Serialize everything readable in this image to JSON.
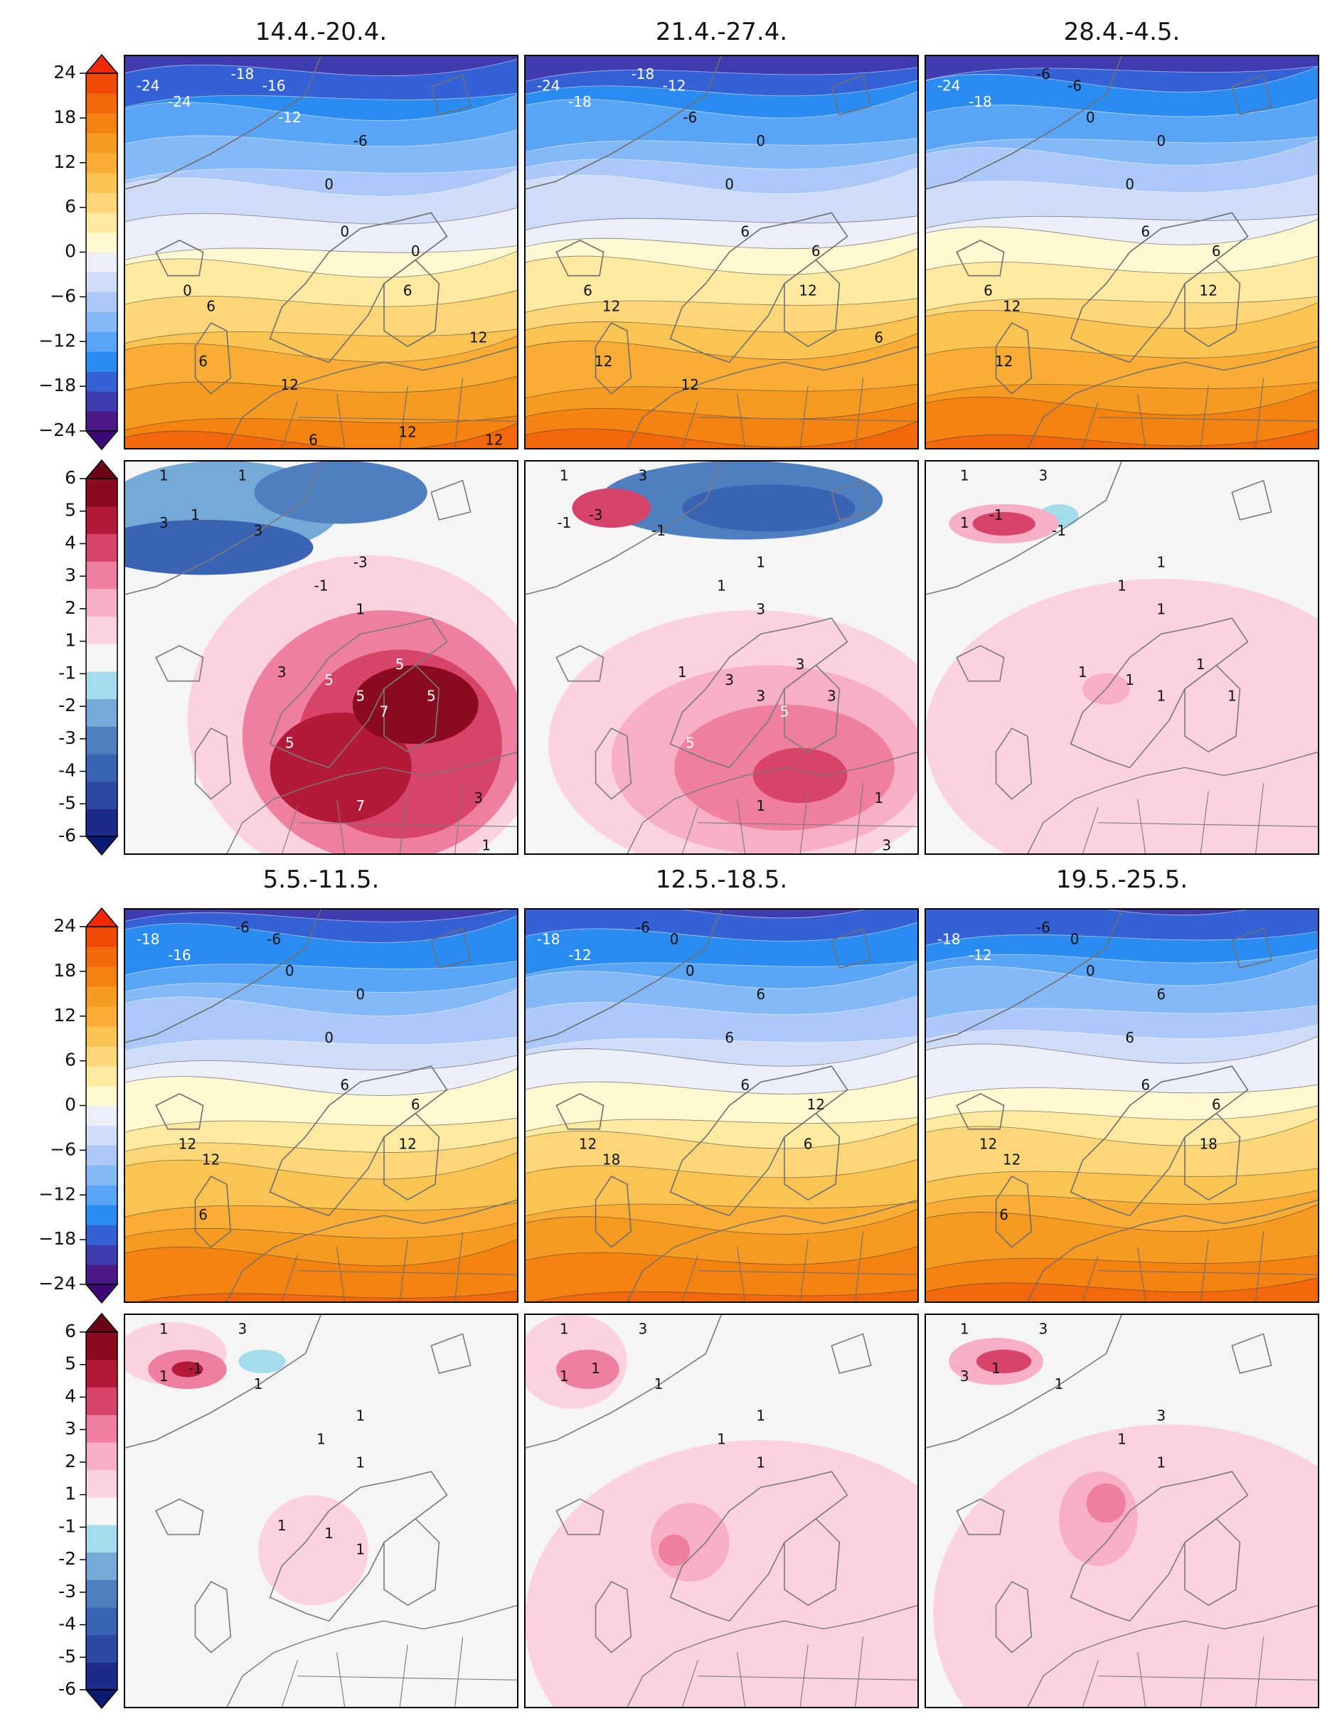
{
  "chart_data": {
    "type": "heatmap",
    "description_units": "forecast weekly mean 2m temperature (°C) and temperature anomaly (°C), six weekly periods",
    "periods": [
      "14.4.-20.4.",
      "21.4.-27.4.",
      "28.4.-4.5.",
      "5.5.-11.5.",
      "12.5.-18.5.",
      "19.5.-25.5."
    ],
    "colorbars": {
      "temperature": {
        "ticks": [
          "24",
          "18",
          "12",
          "6",
          "0",
          "−6",
          "−12",
          "−18",
          "−24"
        ],
        "tick_values": [
          24,
          18,
          12,
          6,
          0,
          -6,
          -12,
          -18,
          -24
        ],
        "range": [
          -24,
          24
        ],
        "levels": [
          -24,
          -21,
          -18,
          -15,
          -12,
          -9,
          -6,
          -3,
          0,
          3,
          6,
          9,
          12,
          15,
          18,
          21,
          24
        ],
        "colors": [
          "#4b1a86",
          "#3f3cb0",
          "#3561d6",
          "#2a8bf0",
          "#5aa4f7",
          "#85b8f8",
          "#acc8f8",
          "#cfdcf8",
          "#eceff9",
          "#fff8d0",
          "#fde9a0",
          "#fdd777",
          "#fbc452",
          "#f9ad34",
          "#f79a22",
          "#f58312",
          "#f4680c",
          "#f24a06"
        ],
        "extend_colors": {
          "low": "#3c0875",
          "high": "#ef2a05"
        }
      },
      "anomaly": {
        "ticks": [
          "6",
          "5",
          "4",
          "3",
          "2",
          "1",
          "-1",
          "-2",
          "-3",
          "-4",
          "-5",
          "-6"
        ],
        "tick_values": [
          6,
          5,
          4,
          3,
          2,
          1,
          -1,
          -2,
          -3,
          -4,
          -5,
          -6
        ],
        "range": [
          -6,
          6
        ],
        "colors": [
          "#1d2a8c",
          "#2c4aa2",
          "#3b63b3",
          "#4f7fc0",
          "#74a9d8",
          "#a3dded",
          "#f5f5f5",
          "#fcd2e0",
          "#f8aec4",
          "#ef7f9e",
          "#d8436a",
          "#b31939",
          "#8a0a20"
        ],
        "extend_colors": {
          "low": "#0b1b72",
          "high": "#6b0516"
        }
      }
    },
    "temperature_maps": [
      {
        "period": "14.4.-20.4.",
        "contour_labels": [
          "-24",
          "-24",
          "-18",
          "-16",
          "-12",
          "-6",
          "0",
          "0",
          "0",
          "0",
          "6",
          "6",
          "6",
          "12",
          "12",
          "12",
          "12",
          "6"
        ]
      },
      {
        "period": "21.4.-27.4.",
        "contour_labels": [
          "-24",
          "-18",
          "-18",
          "-12",
          "-6",
          "0",
          "0",
          "6",
          "6",
          "6",
          "12",
          "12",
          "12",
          "12",
          "6"
        ]
      },
      {
        "period": "28.4.-4.5.",
        "contour_labels": [
          "-24",
          "-18",
          "-6",
          "-6",
          "0",
          "0",
          "0",
          "6",
          "6",
          "6",
          "12",
          "12",
          "12"
        ]
      },
      {
        "period": "5.5.-11.5.",
        "contour_labels": [
          "-18",
          "-16",
          "-6",
          "-6",
          "0",
          "0",
          "0",
          "6",
          "6",
          "12",
          "12",
          "12",
          "6"
        ]
      },
      {
        "period": "12.5.-18.5.",
        "contour_labels": [
          "-18",
          "-12",
          "-6",
          "0",
          "0",
          "6",
          "6",
          "6",
          "12",
          "12",
          "18",
          "6"
        ]
      },
      {
        "period": "19.5.-25.5.",
        "contour_labels": [
          "-18",
          "-12",
          "-6",
          "0",
          "0",
          "6",
          "6",
          "6",
          "6",
          "12",
          "12",
          "18",
          "6"
        ]
      }
    ],
    "anomaly_maps": [
      {
        "period": "14.4.-20.4.",
        "contour_labels": [
          "1",
          "1",
          "1",
          "3",
          "3",
          "-3",
          "-1",
          "1",
          "3",
          "5",
          "5",
          "5",
          "5",
          "7",
          "5",
          "7",
          "3",
          "1"
        ]
      },
      {
        "period": "21.4.-27.4.",
        "contour_labels": [
          "1",
          "3",
          "-3",
          "-1",
          "-1",
          "1",
          "1",
          "3",
          "1",
          "3",
          "3",
          "3",
          "3",
          "5",
          "5",
          "1",
          "1",
          "3"
        ]
      },
      {
        "period": "28.4.-4.5.",
        "contour_labels": [
          "1",
          "3",
          "-1",
          "-1",
          "1",
          "1",
          "1",
          "1",
          "1",
          "1",
          "1",
          "1",
          "1"
        ]
      },
      {
        "period": "5.5.-11.5.",
        "contour_labels": [
          "1",
          "3",
          "-1",
          "1",
          "1",
          "1",
          "1",
          "1",
          "1",
          "1",
          "1"
        ]
      },
      {
        "period": "12.5.-18.5.",
        "contour_labels": [
          "1",
          "3",
          "1",
          "1",
          "1",
          "1",
          "1",
          "1"
        ]
      },
      {
        "period": "19.5.-25.5.",
        "contour_labels": [
          "1",
          "3",
          "1",
          "1",
          "3",
          "3",
          "1",
          "1"
        ]
      }
    ]
  }
}
